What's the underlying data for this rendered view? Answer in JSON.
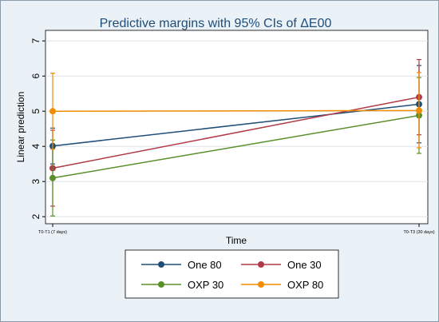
{
  "chart_data": {
    "type": "line",
    "title": "Predictive margins with 95% CIs of ΔE00",
    "xlabel": "Time",
    "ylabel": "Linear prediction",
    "categories": [
      "T0-T1 (7 days)",
      "T0-T3 (30 days)"
    ],
    "ylim": [
      1.8,
      7.3
    ],
    "yticks": [
      "2",
      "3",
      "4",
      "5",
      "6",
      "7"
    ],
    "grid": true,
    "legend_position": "bottom",
    "series": [
      {
        "name": "One 80",
        "color": "#1f4e79",
        "values": [
          4.01,
          5.2
        ],
        "ci_low": [
          3.5,
          4.1
        ],
        "ci_high": [
          4.52,
          6.3
        ]
      },
      {
        "name": "One 30",
        "color": "#b03a48",
        "values": [
          3.38,
          5.4
        ],
        "ci_low": [
          2.3,
          4.33
        ],
        "ci_high": [
          4.46,
          6.47
        ]
      },
      {
        "name": "OXP 30",
        "color": "#5a8f29",
        "values": [
          3.1,
          4.88
        ],
        "ci_low": [
          2.02,
          3.8
        ],
        "ci_high": [
          4.18,
          5.96
        ]
      },
      {
        "name": "OXP 80",
        "color": "#f28c00",
        "values": [
          5.0,
          5.02
        ],
        "ci_low": [
          3.92,
          3.96
        ],
        "ci_high": [
          6.08,
          6.1
        ]
      }
    ]
  }
}
